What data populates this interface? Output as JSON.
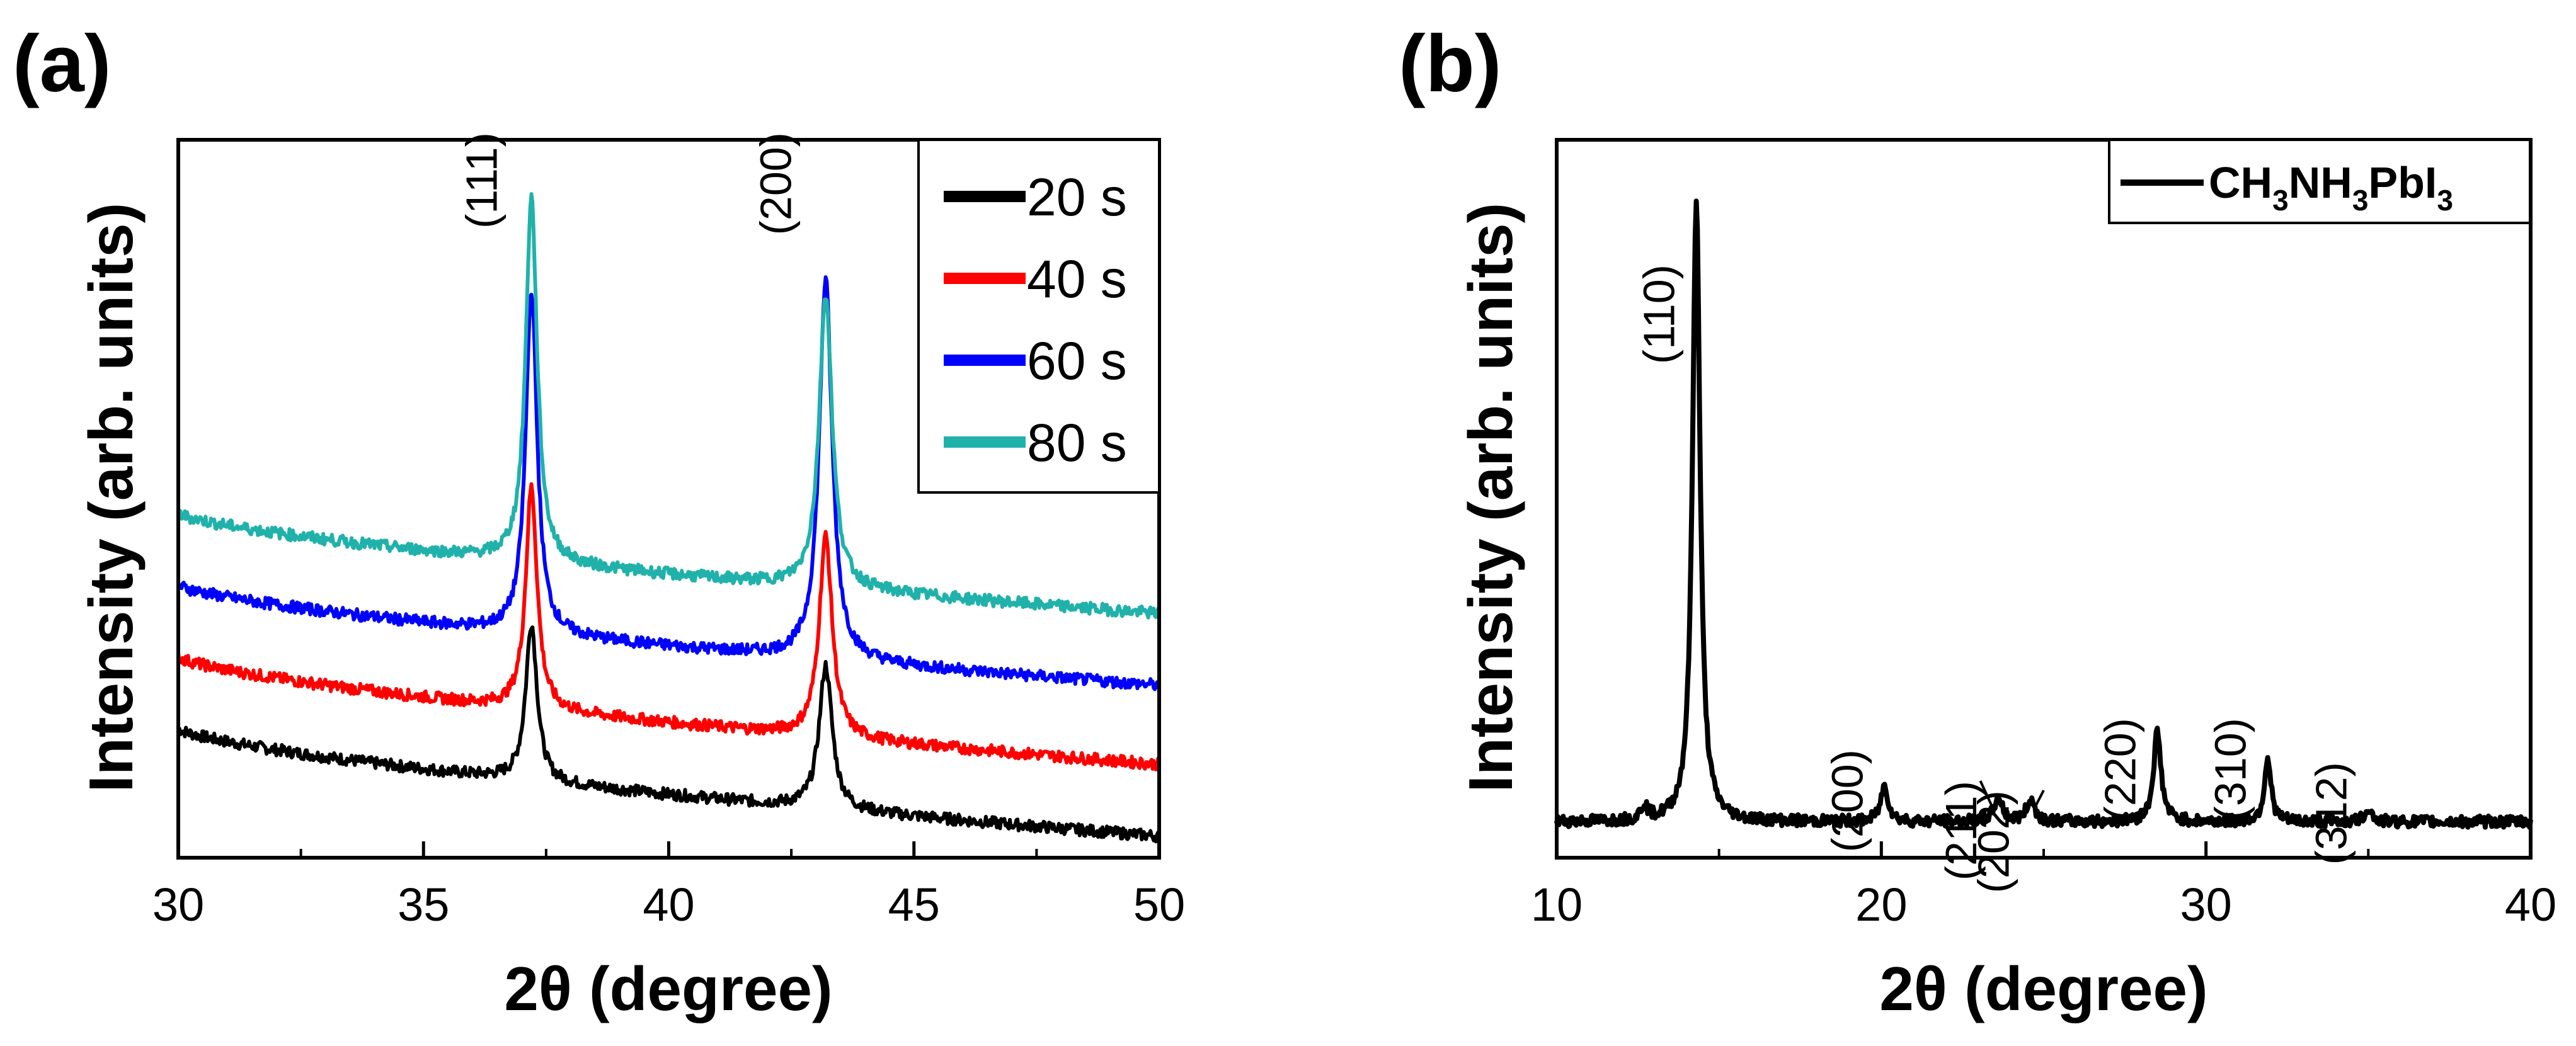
{
  "chart_data": [
    {
      "panel_label": "(a)",
      "type": "line",
      "xlabel": "2θ (degree)",
      "ylabel": "Intensity (arb. units)",
      "xlim": [
        30,
        50
      ],
      "ylim": [
        0,
        100
      ],
      "x_ticks": [
        "30",
        "35",
        "40",
        "45",
        "50"
      ],
      "x_tick_values": [
        30,
        35,
        40,
        45,
        50
      ],
      "y_ticks_shown": false,
      "legend_position": "top-right",
      "peak_labels": [
        {
          "text": "(111)",
          "x": 37.2
        },
        {
          "text": "(200)",
          "x": 43.2
        }
      ],
      "series": [
        {
          "name": "20 s",
          "color": "#000000",
          "baseline_start": 18,
          "baseline_end": 3,
          "peaks": [
            {
              "x": 37.2,
              "height": 22,
              "width": 0.14
            },
            {
              "x": 43.2,
              "height": 20,
              "width": 0.16
            }
          ]
        },
        {
          "name": "40 s",
          "color": "#ff0000",
          "baseline_start": 28,
          "baseline_end": 13,
          "peaks": [
            {
              "x": 37.2,
              "height": 31,
              "width": 0.14
            },
            {
              "x": 43.2,
              "height": 28,
              "width": 0.16
            }
          ]
        },
        {
          "name": "60 s",
          "color": "#0000ff",
          "baseline_start": 38,
          "baseline_end": 24,
          "peaks": [
            {
              "x": 37.2,
              "height": 48,
              "width": 0.14
            },
            {
              "x": 43.2,
              "height": 53,
              "width": 0.16
            }
          ]
        },
        {
          "name": "80 s",
          "color": "#20b2aa",
          "baseline_start": 48,
          "baseline_end": 34,
          "peaks": [
            {
              "x": 37.2,
              "height": 51,
              "width": 0.14
            },
            {
              "x": 43.2,
              "height": 41,
              "width": 0.16
            }
          ]
        }
      ]
    },
    {
      "panel_label": "(b)",
      "type": "line",
      "xlabel": "2θ (degree)",
      "ylabel": "Intensity (arb. units)",
      "xlim": [
        10,
        40
      ],
      "ylim": [
        0,
        100
      ],
      "x_ticks": [
        "10",
        "20",
        "30",
        "40"
      ],
      "x_tick_values": [
        10,
        20,
        30,
        40
      ],
      "y_ticks_shown": false,
      "legend_position": "top-right",
      "legend": {
        "main": "CH",
        "sub1": "3",
        "mid": "NH",
        "sub2": "3",
        "tail": "PbI",
        "sub3": "3"
      },
      "series": [
        {
          "name": "CH3NH3PbI3",
          "color": "#000000",
          "baseline": 5,
          "peaks": [
            {
              "x": 12.7,
              "height": 2,
              "width": 0.12
            },
            {
              "x": 14.3,
              "height": 87,
              "width": 0.14
            },
            {
              "x": 20.1,
              "height": 5,
              "width": 0.14
            },
            {
              "x": 23.6,
              "height": 3.2,
              "width": 0.16
            },
            {
              "x": 24.6,
              "height": 3,
              "width": 0.16
            },
            {
              "x": 28.5,
              "height": 12.5,
              "width": 0.14
            },
            {
              "x": 31.9,
              "height": 9,
              "width": 0.12
            },
            {
              "x": 35.0,
              "height": 2,
              "width": 0.12
            }
          ]
        }
      ],
      "peak_labels": [
        {
          "text": "(110)",
          "x": 14.3
        },
        {
          "text": "(200)",
          "x": 20.1
        },
        {
          "text": "(211)",
          "x": 23.6
        },
        {
          "text": "(202)",
          "x": 24.6
        },
        {
          "text": "(220)",
          "x": 28.5
        },
        {
          "text": "(310)",
          "x": 31.9
        },
        {
          "text": "(312)",
          "x": 35.0
        }
      ]
    }
  ]
}
